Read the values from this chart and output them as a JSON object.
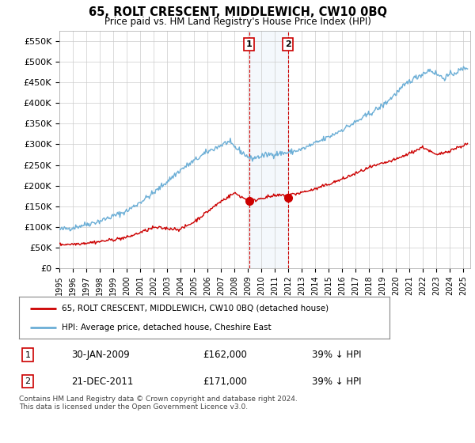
{
  "title": "65, ROLT CRESCENT, MIDDLEWICH, CW10 0BQ",
  "subtitle": "Price paid vs. HM Land Registry's House Price Index (HPI)",
  "ylim": [
    0,
    575000
  ],
  "yticks": [
    0,
    50000,
    100000,
    150000,
    200000,
    250000,
    300000,
    350000,
    400000,
    450000,
    500000,
    550000
  ],
  "ytick_labels": [
    "£0",
    "£50K",
    "£100K",
    "£150K",
    "£200K",
    "£250K",
    "£300K",
    "£350K",
    "£400K",
    "£450K",
    "£500K",
    "£550K"
  ],
  "hpi_color": "#6baed6",
  "price_color": "#cc0000",
  "legend_label_price": "65, ROLT CRESCENT, MIDDLEWICH, CW10 0BQ (detached house)",
  "legend_label_hpi": "HPI: Average price, detached house, Cheshire East",
  "note1_date": "30-JAN-2009",
  "note1_price": "£162,000",
  "note1_hpi": "39% ↓ HPI",
  "note2_date": "21-DEC-2011",
  "note2_price": "£171,000",
  "note2_hpi": "39% ↓ HPI",
  "footer": "Contains HM Land Registry data © Crown copyright and database right 2024.\nThis data is licensed under the Open Government Licence v3.0.",
  "sale1_x": 2009.08,
  "sale1_y": 162000,
  "sale2_x": 2011.97,
  "sale2_y": 171000,
  "bg_color": "#ffffff",
  "grid_color": "#cccccc",
  "xlim_left": 1995,
  "xlim_right": 2025.5
}
